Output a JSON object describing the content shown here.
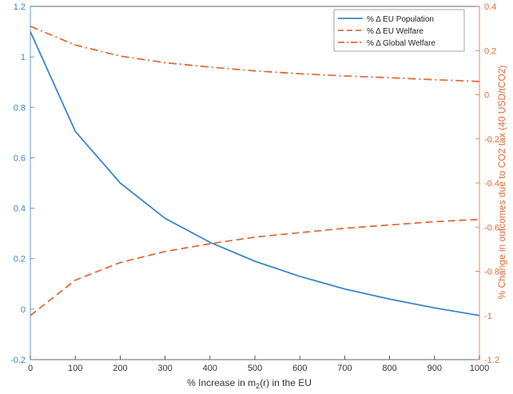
{
  "chart_data": {
    "type": "line",
    "xlabel_main": "% Increase in m",
    "xlabel_sub": "2",
    "xlabel_tail": "(r) in the EU",
    "ylabel_right": "% Change in outcomes due to CO2 tax (40 USD/tCO2)",
    "ylabel_left": "",
    "x_ticks": [
      "0",
      "100",
      "200",
      "300",
      "400",
      "500",
      "600",
      "700",
      "800",
      "900",
      "1000"
    ],
    "y_left_ticks": [
      "-0.2",
      "0",
      "0.2",
      "0.4",
      "0.6",
      "0.8",
      "1",
      "1.2"
    ],
    "y_right_ticks": [
      "-1.2",
      "-1",
      "-0.8",
      "-0.6",
      "-0.4",
      "-0.2",
      "0",
      "0.2",
      "0.4"
    ],
    "xlim": [
      0,
      1000
    ],
    "ylim_left": [
      -0.2,
      1.2
    ],
    "ylim_right": [
      -1.2,
      0.4
    ],
    "grid": false,
    "legend_position": "top-right",
    "colors": {
      "left_axis": "#3b86c6",
      "right_axis": "#e06b3a",
      "series_blue": "#3b86c6",
      "series_orange": "#e06b3a"
    },
    "series": [
      {
        "name": "% Δ EU Population",
        "axis": "left",
        "style": "solid",
        "color": "#3b86c6",
        "x": [
          0,
          100,
          200,
          300,
          400,
          500,
          600,
          700,
          800,
          900,
          1000
        ],
        "y": [
          1.1,
          0.705,
          0.5,
          0.36,
          0.265,
          0.19,
          0.13,
          0.08,
          0.04,
          0.005,
          -0.025
        ]
      },
      {
        "name": "% Δ EU Welfare",
        "axis": "right",
        "style": "dashed",
        "color": "#e06b3a",
        "x": [
          0,
          100,
          200,
          300,
          400,
          500,
          600,
          700,
          800,
          900,
          1000
        ],
        "y": [
          -1.0,
          -0.84,
          -0.76,
          -0.71,
          -0.675,
          -0.645,
          -0.625,
          -0.605,
          -0.59,
          -0.575,
          -0.565
        ]
      },
      {
        "name": "% Δ Global Welfare",
        "axis": "right",
        "style": "dashdot",
        "color": "#e06b3a",
        "x": [
          0,
          100,
          200,
          300,
          400,
          500,
          600,
          700,
          800,
          900,
          1000
        ],
        "y": [
          0.31,
          0.225,
          0.175,
          0.145,
          0.125,
          0.108,
          0.095,
          0.085,
          0.077,
          0.068,
          0.06
        ]
      }
    ]
  }
}
